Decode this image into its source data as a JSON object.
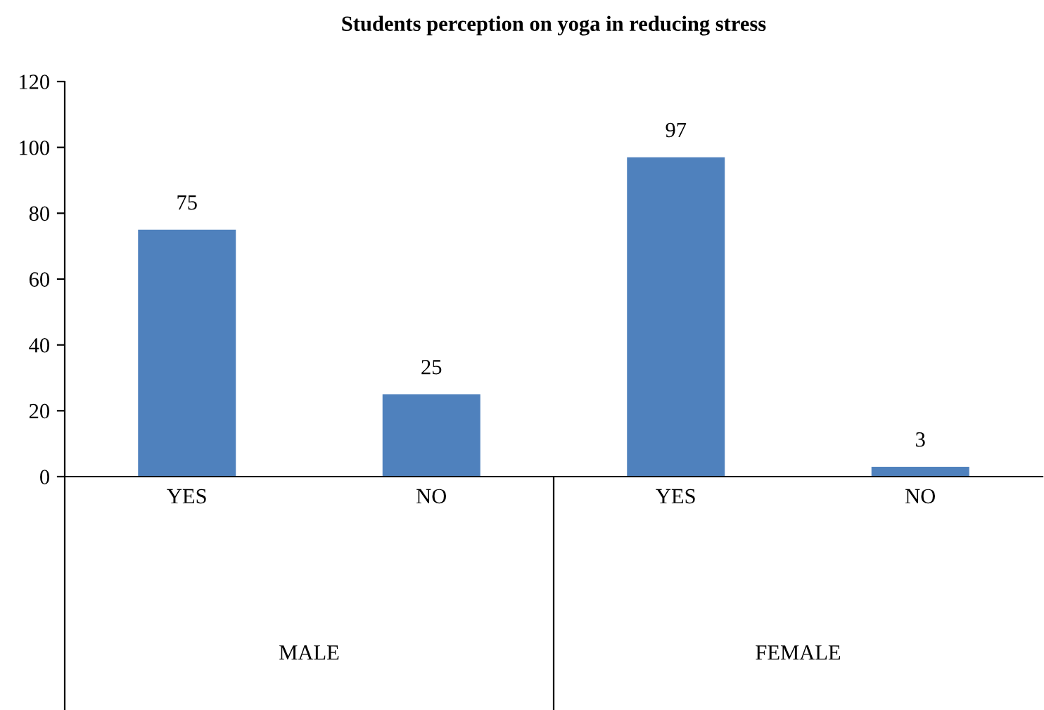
{
  "chart_data": {
    "type": "bar",
    "title": "Students perception on yoga in reducing stress",
    "categories": [
      "YES",
      "NO",
      "YES",
      "NO"
    ],
    "values": [
      75,
      25,
      97,
      3
    ],
    "color": "#4f81bd",
    "ylim": [
      0,
      120
    ],
    "yticks": [
      0,
      20,
      40,
      60,
      80,
      100,
      120
    ],
    "data_labels": true,
    "grid": false,
    "legend": false,
    "annotations": [
      "MALE",
      "FEMALE"
    ]
  }
}
